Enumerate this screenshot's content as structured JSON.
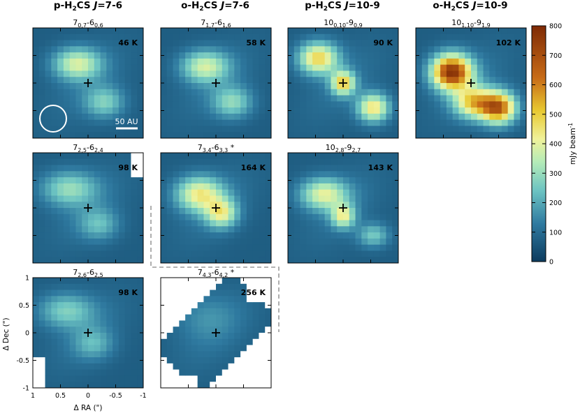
{
  "column_headers": [
    {
      "id": "col-1",
      "species": "p-H",
      "sub": "2",
      "rest": "CS ",
      "J": "J",
      "trans": "=7-6"
    },
    {
      "id": "col-2",
      "species": "o-H",
      "sub": "2",
      "rest": "CS ",
      "J": "J",
      "trans": "=7-6"
    },
    {
      "id": "col-3",
      "species": "p-H",
      "sub": "2",
      "rest": "CS ",
      "J": "J",
      "trans": "=10-9"
    },
    {
      "id": "col-4",
      "species": "o-H",
      "sub": "2",
      "rest": "CS ",
      "J": "J",
      "trans": "=10-9"
    }
  ],
  "colorbar": {
    "label": "mJy beam",
    "label_sup": "-1",
    "min": 0,
    "max": 800,
    "ticks": [
      "0",
      "100",
      "200",
      "300",
      "400",
      "500",
      "600",
      "700",
      "800"
    ]
  },
  "axes": {
    "xlabel": "Δ RA (\")",
    "ylabel": "Δ Dec (\")",
    "xticks": [
      "1",
      "0.5",
      "0",
      "-0.5",
      "-1"
    ],
    "yticks": [
      "1",
      "0.5",
      "0",
      "-0.5",
      "-1"
    ]
  },
  "annotations": {
    "scalebar_label": "50 AU",
    "beam": "beam ellipse"
  },
  "chart_data": {
    "type": "heatmap",
    "x_range": [
      1,
      -1
    ],
    "y_range": [
      -1,
      1
    ],
    "panels": [
      {
        "id": "p1",
        "row": 0,
        "col": 0,
        "t": [
          "7",
          "0,7",
          "-6",
          "0,6"
        ],
        "star": "",
        "temp": "46 K",
        "peak_mjy": 380,
        "blobs": [
          {
            "x": 0.2,
            "y": 0.35,
            "sx": 0.3,
            "sy": 0.2,
            "a": 370
          },
          {
            "x": -0.3,
            "y": -0.35,
            "sx": 0.25,
            "sy": 0.2,
            "a": 260
          }
        ]
      },
      {
        "id": "p2",
        "row": 0,
        "col": 1,
        "t": [
          "7",
          "1,7",
          "-6",
          "1,6"
        ],
        "star": "",
        "temp": "58 K",
        "peak_mjy": 370,
        "blobs": [
          {
            "x": 0.2,
            "y": 0.3,
            "sx": 0.3,
            "sy": 0.2,
            "a": 360
          },
          {
            "x": -0.3,
            "y": -0.35,
            "sx": 0.25,
            "sy": 0.2,
            "a": 280
          }
        ]
      },
      {
        "id": "p3",
        "row": 0,
        "col": 2,
        "t": [
          "10",
          "0,10",
          "-9",
          "0,9"
        ],
        "star": "",
        "temp": "90 K",
        "peak_mjy": 500,
        "blobs": [
          {
            "x": 0.45,
            "y": 0.45,
            "sx": 0.25,
            "sy": 0.2,
            "a": 480
          },
          {
            "x": 0.0,
            "y": 0.0,
            "sx": 0.15,
            "sy": 0.15,
            "a": 470
          },
          {
            "x": -0.55,
            "y": -0.45,
            "sx": 0.2,
            "sy": 0.18,
            "a": 450
          }
        ]
      },
      {
        "id": "p4",
        "row": 0,
        "col": 3,
        "t": [
          "10",
          "1,10",
          "-9",
          "1,9"
        ],
        "star": "",
        "temp": "102 K",
        "peak_mjy": 760,
        "blobs": [
          {
            "x": 0.35,
            "y": 0.2,
            "sx": 0.25,
            "sy": 0.22,
            "a": 760
          },
          {
            "x": -0.5,
            "y": -0.45,
            "sx": 0.22,
            "sy": 0.2,
            "a": 640
          },
          {
            "x": -0.05,
            "y": -0.35,
            "sx": 0.25,
            "sy": 0.2,
            "a": 470
          }
        ]
      },
      {
        "id": "p5",
        "row": 1,
        "col": 0,
        "t": [
          "7",
          "2,5",
          "-6",
          "2,4"
        ],
        "star": "",
        "temp": "98 K",
        "peak_mjy": 300,
        "blobs": [
          {
            "x": 0.35,
            "y": 0.35,
            "sx": 0.35,
            "sy": 0.22,
            "a": 290
          },
          {
            "x": -0.2,
            "y": -0.3,
            "sx": 0.25,
            "sy": 0.2,
            "a": 220
          }
        ]
      },
      {
        "id": "p6",
        "row": 1,
        "col": 1,
        "t": [
          "7",
          "3,4",
          "-6",
          "3,3"
        ],
        "star": "*",
        "temp": "164 K",
        "peak_mjy": 420,
        "blobs": [
          {
            "x": 0.3,
            "y": 0.25,
            "sx": 0.3,
            "sy": 0.22,
            "a": 420
          },
          {
            "x": -0.1,
            "y": -0.1,
            "sx": 0.2,
            "sy": 0.18,
            "a": 380
          }
        ]
      },
      {
        "id": "p7",
        "row": 1,
        "col": 2,
        "t": [
          "10",
          "2,8",
          "-9",
          "2,7"
        ],
        "star": "",
        "temp": "143 K",
        "peak_mjy": 400,
        "blobs": [
          {
            "x": 0.35,
            "y": 0.25,
            "sx": 0.3,
            "sy": 0.2,
            "a": 390
          },
          {
            "x": 0.0,
            "y": -0.15,
            "sx": 0.15,
            "sy": 0.15,
            "a": 380
          },
          {
            "x": -0.55,
            "y": -0.5,
            "sx": 0.2,
            "sy": 0.15,
            "a": 250
          }
        ]
      },
      {
        "id": "p8",
        "row": 2,
        "col": 0,
        "t": [
          "7",
          "2,6",
          "-6",
          "2,5"
        ],
        "star": "",
        "temp": "98 K",
        "peak_mjy": 270,
        "blobs": [
          {
            "x": 0.4,
            "y": 0.4,
            "sx": 0.35,
            "sy": 0.22,
            "a": 260
          },
          {
            "x": -0.1,
            "y": -0.2,
            "sx": 0.25,
            "sy": 0.2,
            "a": 200
          }
        ]
      },
      {
        "id": "p9",
        "row": 2,
        "col": 1,
        "t": [
          "7",
          "4,3",
          "-6",
          "4,2"
        ],
        "star": "*",
        "temp": "256 K",
        "peak_mjy": 150,
        "blobs": [
          {
            "x": 0.2,
            "y": 0.3,
            "sx": 0.4,
            "sy": 0.3,
            "a": 140
          }
        ]
      }
    ]
  }
}
